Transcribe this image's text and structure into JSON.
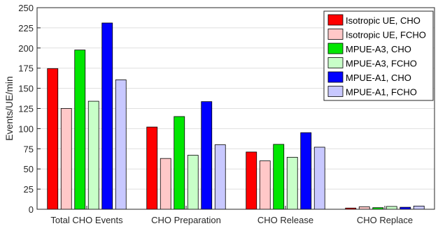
{
  "chart_data": {
    "type": "bar",
    "title": "",
    "xlabel": "",
    "ylabel": "Events/UE/min",
    "ylim": [
      0,
      250
    ],
    "yticks": [
      0,
      25,
      50,
      75,
      100,
      125,
      150,
      175,
      200,
      225,
      250
    ],
    "grid": true,
    "legend_position": "top-right",
    "categories": [
      "Total CHO Events",
      "CHO Preparation",
      "CHO Release",
      "CHO Replace"
    ],
    "series": [
      {
        "name": "Isotropic UE, CHO",
        "color": "#ff0000",
        "values": [
          174.5,
          102,
          71,
          1.5
        ]
      },
      {
        "name": "Isotropic UE, FCHO",
        "color": "#ffc8c8",
        "values": [
          125,
          63,
          60,
          3
        ]
      },
      {
        "name": "MPUE-A3, CHO",
        "color": "#00e600",
        "values": [
          197.5,
          115,
          80.5,
          2
        ]
      },
      {
        "name": "MPUE-A3, FCHO",
        "color": "#c8ffc8",
        "values": [
          134,
          67,
          64.5,
          3.5
        ]
      },
      {
        "name": "MPUE-A1, CHO",
        "color": "#0000ff",
        "values": [
          231,
          133.5,
          95,
          2.5
        ]
      },
      {
        "name": "MPUE-A1, FCHO",
        "color": "#c8c8ff",
        "values": [
          160.5,
          80,
          77,
          4
        ]
      }
    ]
  }
}
